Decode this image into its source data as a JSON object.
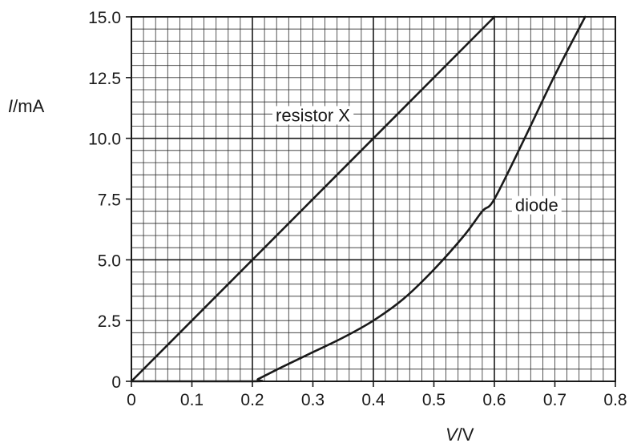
{
  "chart_data": {
    "type": "line",
    "title": "",
    "xlabel": {
      "symbol": "V",
      "unit": "V"
    },
    "ylabel": {
      "symbol": "I",
      "unit": "mA"
    },
    "xlim": [
      0,
      0.8
    ],
    "ylim": [
      0,
      15.0
    ],
    "grid": true,
    "grid_minor_x": 0.02,
    "grid_minor_y": 0.5,
    "grid_major_x": 0.2,
    "grid_major_y": 5.0,
    "x_ticks": [
      "0",
      "0.1",
      "0.2",
      "0.3",
      "0.4",
      "0.5",
      "0.6",
      "0.7",
      "0.8"
    ],
    "x_tick_values": [
      0,
      0.1,
      0.2,
      0.3,
      0.4,
      0.5,
      0.6,
      0.7,
      0.8
    ],
    "y_ticks": [
      "0",
      "2.5",
      "5.0",
      "7.5",
      "10.0",
      "12.5",
      "15.0"
    ],
    "y_tick_values": [
      0,
      2.5,
      5.0,
      7.5,
      10.0,
      12.5,
      15.0
    ],
    "series": [
      {
        "name": "resistor X",
        "x": [
          0,
          0.6
        ],
        "y": [
          0,
          15.0
        ],
        "label_at": [
          0.3,
          10.7
        ]
      },
      {
        "name": "diode",
        "x": [
          0,
          0.2,
          0.21,
          0.25,
          0.3,
          0.35,
          0.4,
          0.45,
          0.5,
          0.55,
          0.58,
          0.6,
          0.65,
          0.7,
          0.75
        ],
        "y": [
          0,
          0,
          0.1,
          0.6,
          1.2,
          1.8,
          2.5,
          3.4,
          4.6,
          6.0,
          7.0,
          7.5,
          10.0,
          12.6,
          15.0
        ],
        "label_at": [
          0.67,
          7.0
        ]
      }
    ]
  }
}
